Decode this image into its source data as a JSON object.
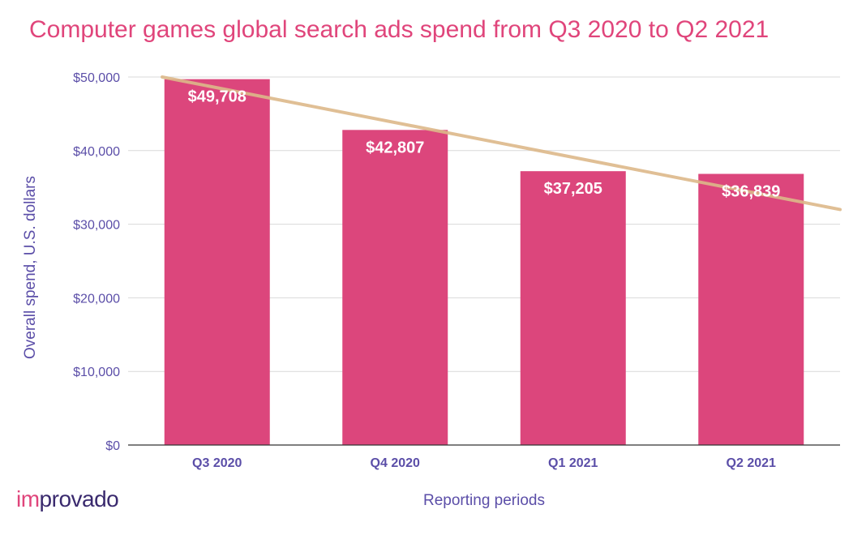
{
  "chart_data": {
    "type": "bar",
    "title": "Computer games global search ads spend from Q3 2020 to Q2 2021",
    "xlabel": "Reporting periods",
    "ylabel": "Overall spend, U.S. dollars",
    "categories": [
      "Q3 2020",
      "Q4 2020",
      "Q1 2021",
      "Q2 2021"
    ],
    "values": [
      49708,
      42807,
      37205,
      36839
    ],
    "data_labels": [
      "$49,708",
      "$42,807",
      "$37,205",
      "$36,839"
    ],
    "ylim": [
      0,
      50000
    ],
    "yticks": [
      0,
      10000,
      20000,
      30000,
      40000,
      50000
    ],
    "ytick_labels": [
      "$0",
      "$10,000",
      "$20,000",
      "$30,000",
      "$40,000",
      "$50,000"
    ],
    "grid": true,
    "trendline": {
      "type": "linear",
      "start": 50000,
      "end": 32000
    },
    "colors": {
      "bar": "#dc467c",
      "trendline": "#ddb98a",
      "title": "#e0457b",
      "axis_text": "#5b4ea8",
      "grid": "#d9d9d9"
    }
  },
  "logo": {
    "part1": "im",
    "part2": "provado"
  }
}
